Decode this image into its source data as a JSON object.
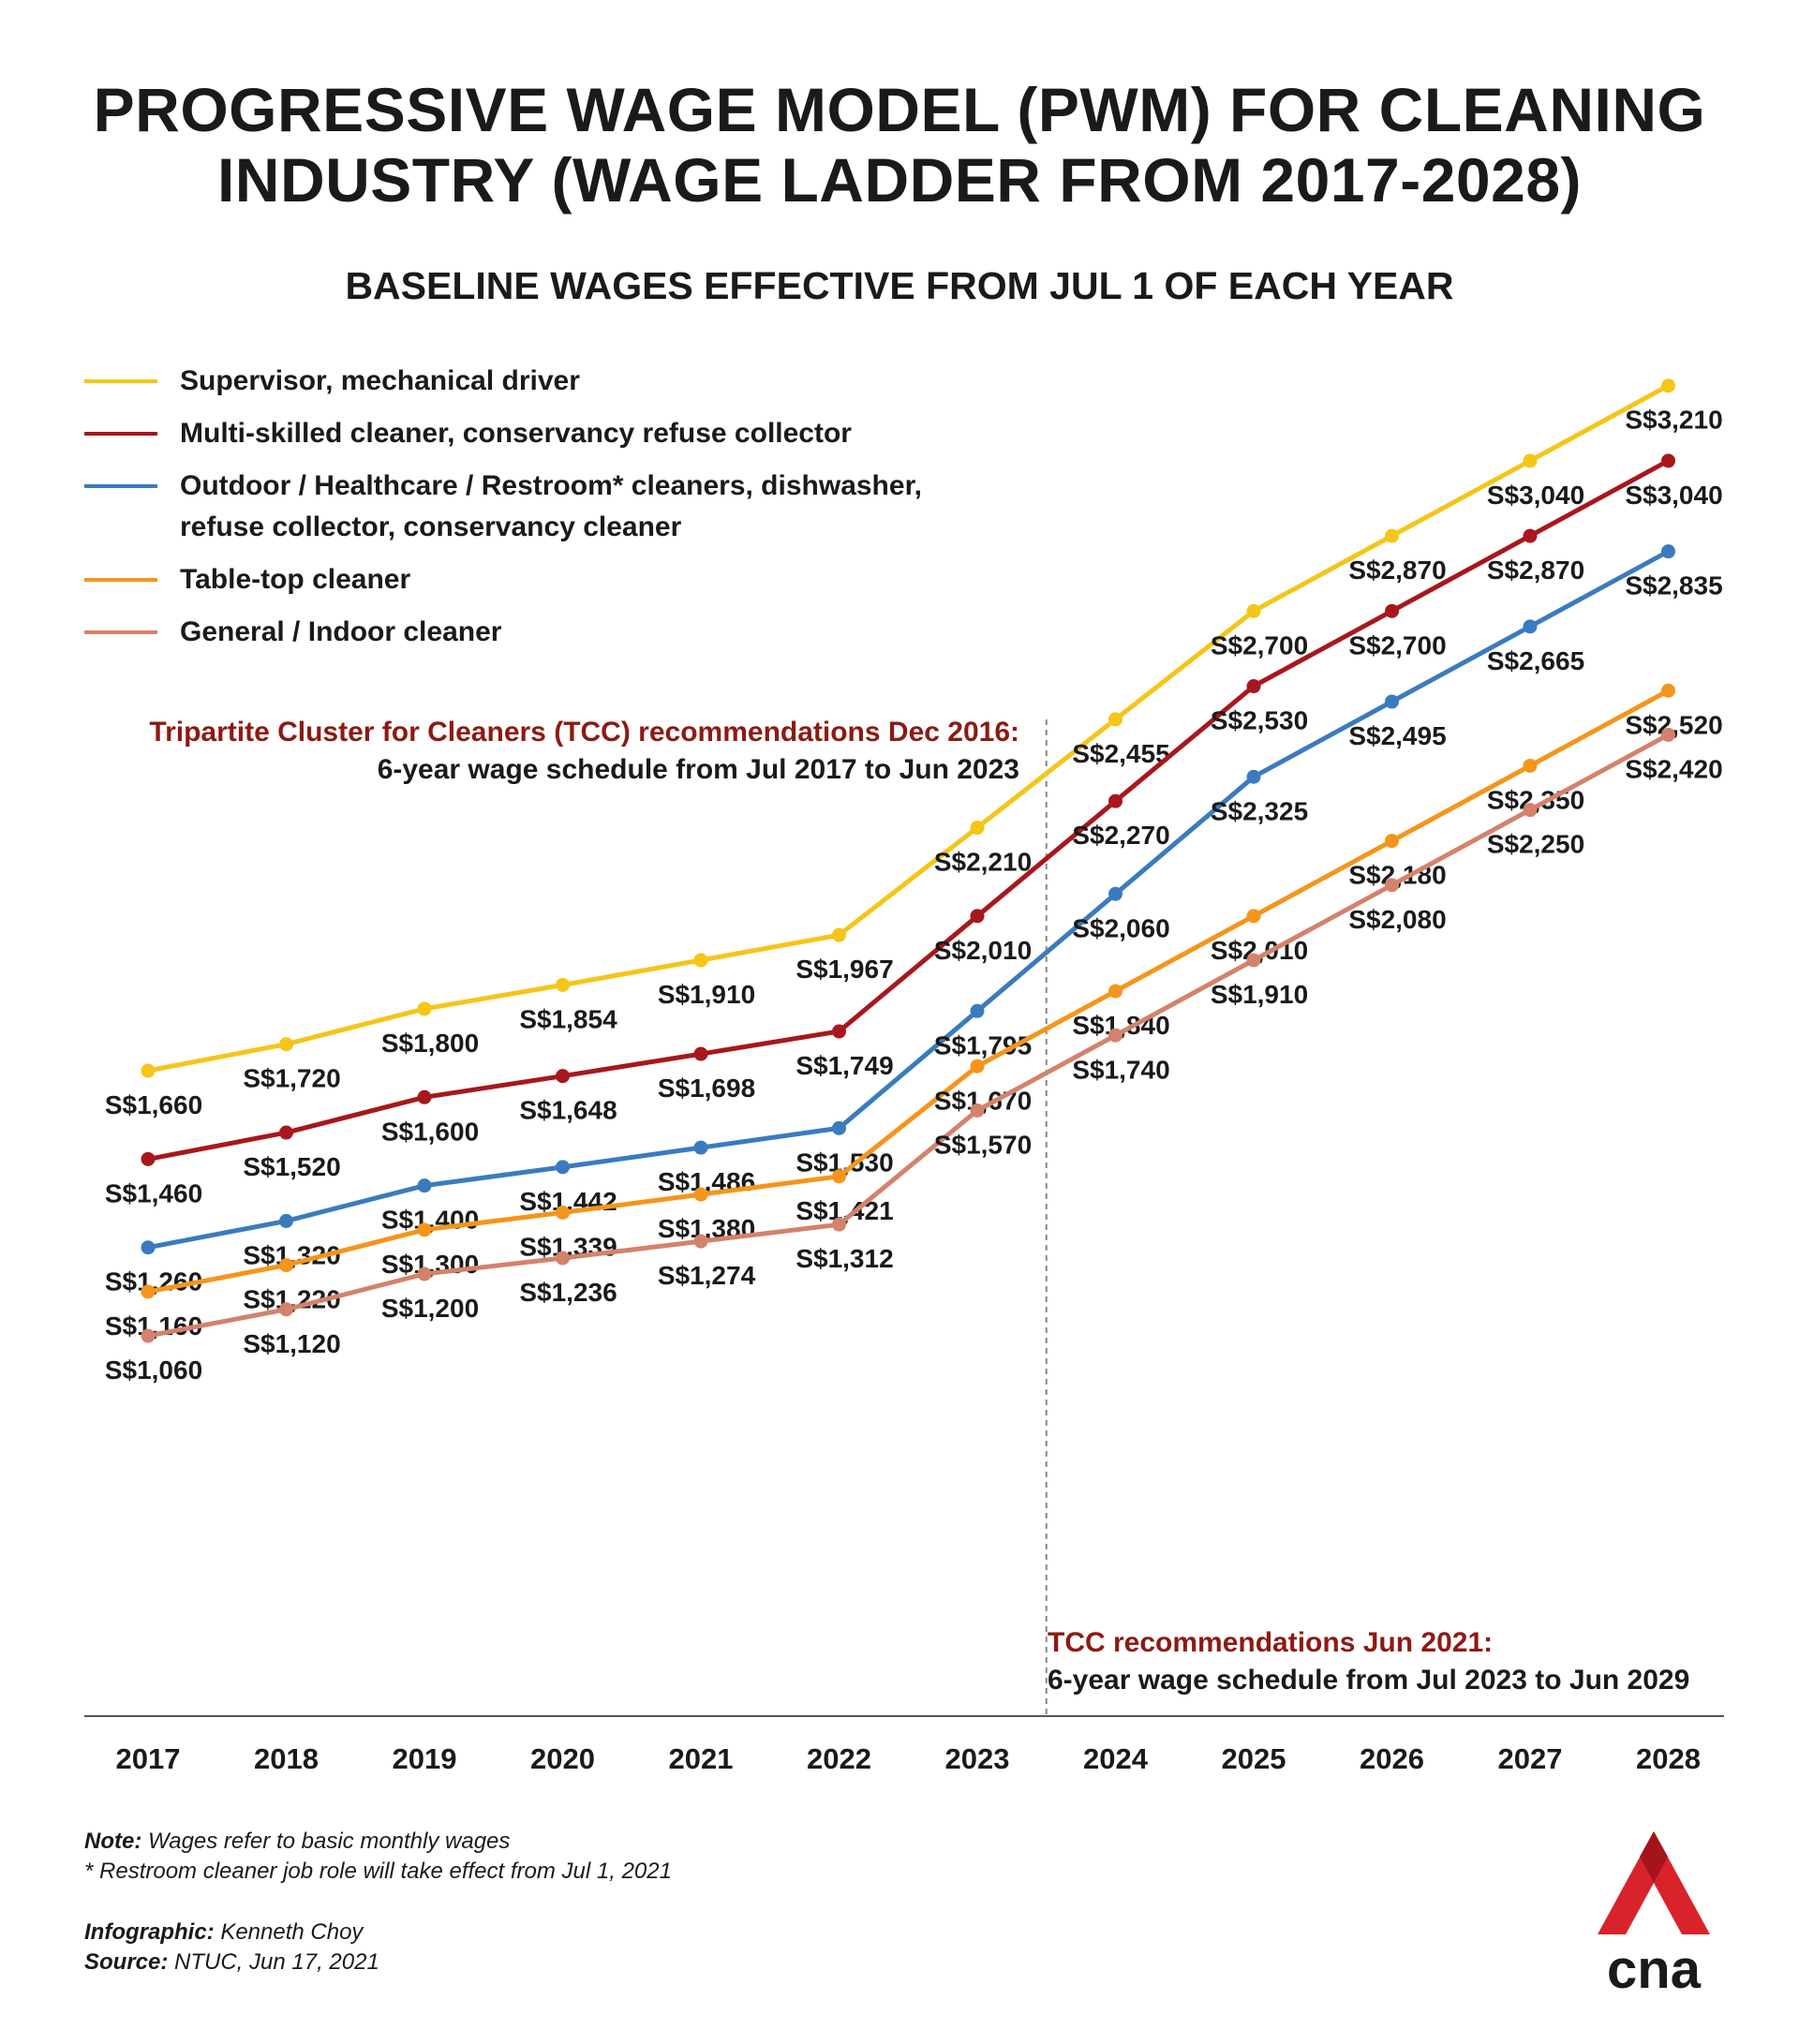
{
  "title_lines": [
    "PROGRESSIVE WAGE MODEL (PWM) FOR CLEANING",
    "INDUSTRY (WAGE LADDER FROM 2017-2028)"
  ],
  "subtitle": "BASELINE WAGES EFFECTIVE FROM JUL 1 OF EACH YEAR",
  "annotations": {
    "left_highlight": "Tripartite Cluster for Cleaners (TCC) recommendations Dec 2016:",
    "left_body": "6-year wage schedule from Jul 2017 to Jun 2023",
    "right_highlight": "TCC recommendations Jun 2021:",
    "right_body": "6-year wage schedule from Jul 2023 to Jun 2029"
  },
  "notes": {
    "note_label": "Note:",
    "note_text": " Wages refer to basic monthly wages",
    "footnote": "* Restroom cleaner job role will take effect from Jul 1, 2021",
    "infographic_label": "Infographic:",
    "infographic_text": " Kenneth Choy",
    "source_label": "Source:",
    "source_text": "  NTUC, Jun 17, 2021"
  },
  "logo": {
    "text": "cna",
    "color": "#d8232a"
  },
  "chart_data": {
    "type": "line",
    "title": "PROGRESSIVE WAGE MODEL (PWM) FOR CLEANING INDUSTRY (WAGE LADDER FROM 2017-2028)",
    "subtitle": "BASELINE WAGES EFFECTIVE FROM JUL 1 OF EACH YEAR",
    "xlabel": "",
    "ylabel": "",
    "value_prefix": "S$",
    "grid": false,
    "legend_position": "top-left",
    "x": [
      "2017",
      "2018",
      "2019",
      "2020",
      "2021",
      "2022",
      "2023",
      "2024",
      "2025",
      "2026",
      "2027",
      "2028"
    ],
    "divider_between": [
      "2023",
      "2024"
    ],
    "series": [
      {
        "name": "Supervisor, mechanical driver",
        "color": "#f5c518",
        "values": [
          1660,
          1720,
          1800,
          1854,
          1910,
          1967,
          2210,
          2455,
          2700,
          2870,
          3040,
          3210
        ]
      },
      {
        "name": "Multi-skilled cleaner, conservancy refuse collector",
        "color": "#a8171c",
        "values": [
          1460,
          1520,
          1600,
          1648,
          1698,
          1749,
          2010,
          2270,
          2530,
          2700,
          2870,
          3040
        ]
      },
      {
        "name": "Outdoor / Healthcare / Restroom* cleaners, dishwasher,\nrefuse collector, conservancy cleaner",
        "color": "#3a7bbf",
        "values": [
          1260,
          1320,
          1400,
          1442,
          1486,
          1530,
          1795,
          2060,
          2325,
          2495,
          2665,
          2835
        ]
      },
      {
        "name": "Table-top cleaner",
        "color": "#f5951b",
        "values": [
          1160,
          1220,
          1300,
          1339,
          1380,
          1421,
          1670,
          1840,
          2010,
          2180,
          2350,
          2520
        ]
      },
      {
        "name": "General / Indoor cleaner",
        "color": "#d4826b",
        "values": [
          1060,
          1120,
          1200,
          1236,
          1274,
          1312,
          1570,
          1740,
          1910,
          2080,
          2250,
          2420
        ]
      }
    ]
  }
}
